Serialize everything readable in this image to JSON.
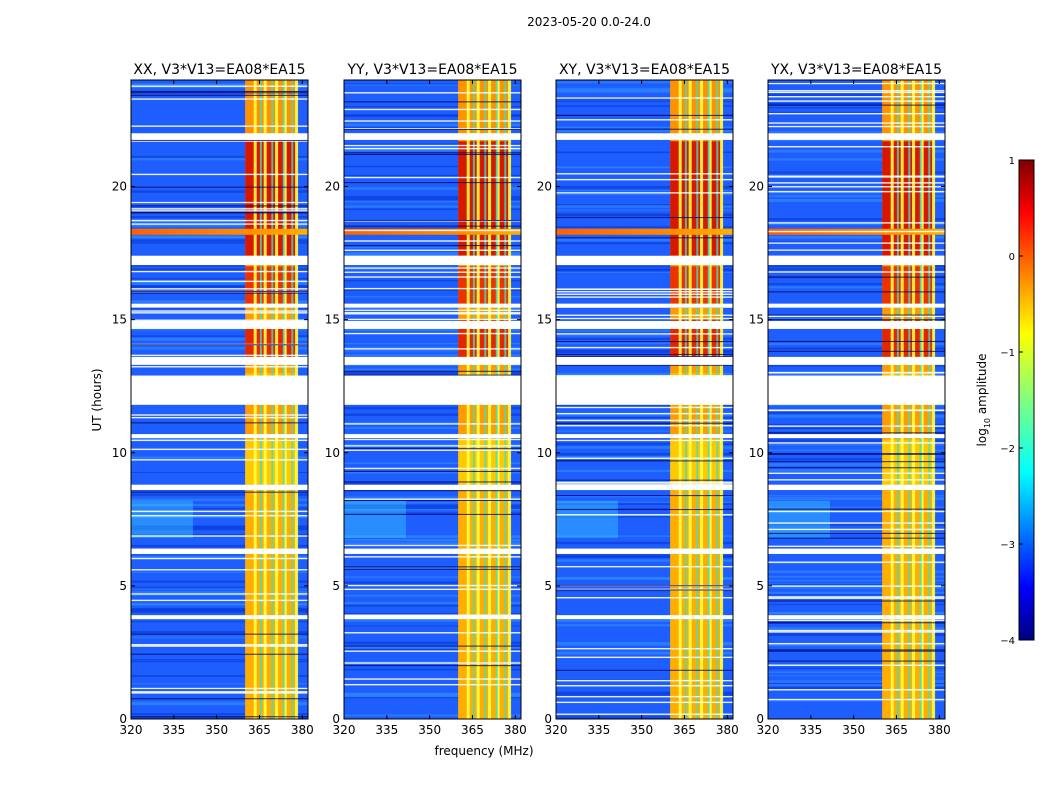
{
  "chart_data": {
    "type": "heatmap",
    "suptitle": "2023-05-20 0.0-24.0",
    "xlabel": "frequency (MHz)",
    "ylabel": "UT (hours)",
    "xlim": [
      320,
      382
    ],
    "ylim": [
      0,
      24
    ],
    "x_ticks": [
      320,
      335,
      350,
      365,
      380
    ],
    "y_ticks": [
      0,
      5,
      10,
      15,
      20
    ],
    "panels": [
      {
        "title": "XX, V3*V13=EA08*EA15",
        "hot_band_mhz": [
          360,
          378
        ]
      },
      {
        "title": "YY, V3*V13=EA08*EA15",
        "hot_band_mhz": [
          360,
          378
        ]
      },
      {
        "title": "XY, V3*V13=EA08*EA15",
        "hot_band_mhz": [
          360,
          378
        ]
      },
      {
        "title": "YX, V3*V13=EA08*EA15",
        "hot_band_mhz": [
          360,
          378
        ]
      }
    ],
    "band_columns_mhz": [
      360,
      363.5,
      364.5,
      367,
      368,
      371,
      372,
      374,
      375,
      378
    ],
    "gap_hours": [
      [
        11.8,
        12.9
      ],
      [
        13.3,
        13.6
      ],
      [
        14.65,
        14.95
      ],
      [
        15.45,
        15.6
      ],
      [
        17.05,
        17.4
      ],
      [
        21.75,
        22.0
      ],
      [
        8.6,
        8.8
      ],
      [
        6.2,
        6.4
      ],
      [
        3.75,
        3.9
      ],
      [
        10.55,
        10.7
      ]
    ],
    "rfi_line_hours": [
      18.3
    ],
    "colorbar": {
      "label": "log10 amplitude",
      "label_main": "log",
      "label_sub": "10",
      "label_rest": " amplitude",
      "range": [
        -4,
        1
      ],
      "ticks": [
        1,
        0,
        -1,
        -2,
        -3,
        -4
      ],
      "tick_labels": [
        "1",
        "0",
        "−1",
        "−2",
        "−3",
        "−4"
      ],
      "colormap": "jet"
    }
  }
}
